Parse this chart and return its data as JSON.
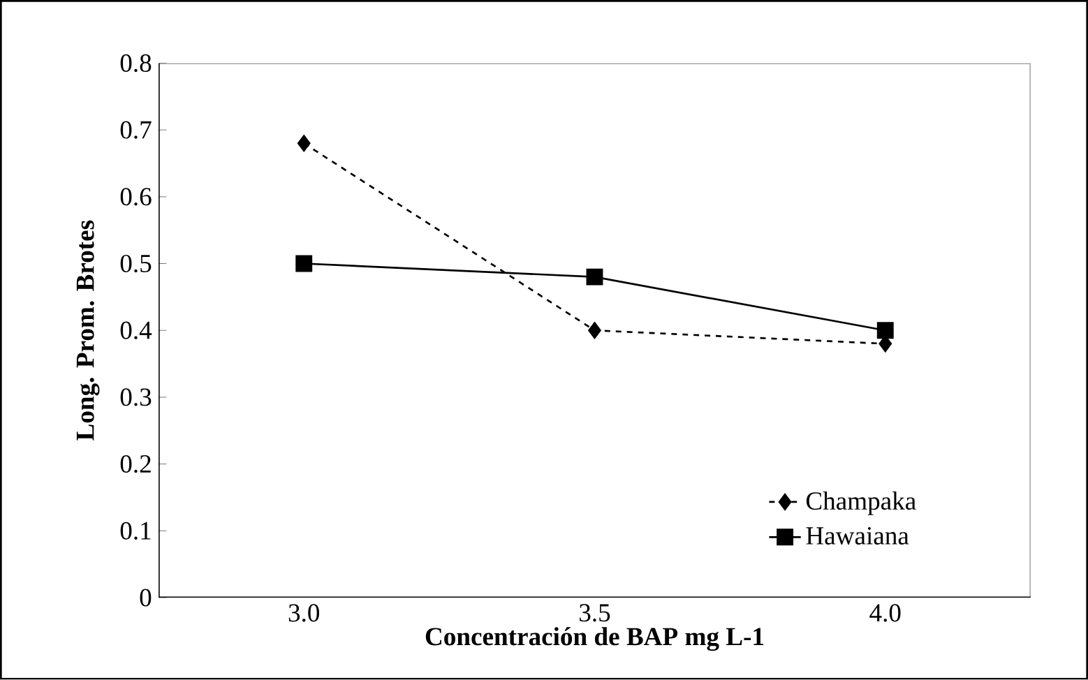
{
  "chart_data": {
    "type": "line",
    "xlabel": "Concentración de BAP mg L-1",
    "ylabel": "Long. Prom. Brotes",
    "categories": [
      "3.0",
      "3.5",
      "4.0"
    ],
    "series": [
      {
        "name": "Champaka",
        "color": "#000000",
        "values": [
          0.68,
          0.4,
          0.38
        ],
        "marker": "diamond",
        "line_style": "dashed"
      },
      {
        "name": "Hawaiana",
        "color": "#000000",
        "values": [
          0.5,
          0.48,
          0.4
        ],
        "marker": "square",
        "line_style": "solid"
      }
    ],
    "ylim": [
      0,
      0.8
    ],
    "yticks": [
      0,
      0.1,
      0.2,
      0.3,
      0.4,
      0.5,
      0.6,
      0.7,
      0.8
    ],
    "grid": false,
    "legend": "bottom right"
  }
}
